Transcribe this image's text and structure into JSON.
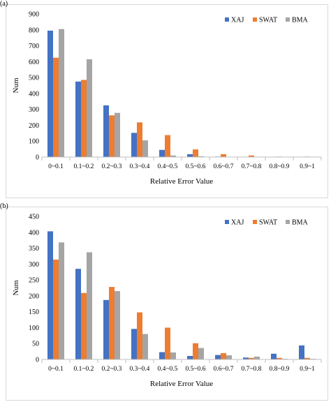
{
  "colors": {
    "XAJ": "#4472C4",
    "SWAT": "#ED7D31",
    "BMA": "#A5A5A5"
  },
  "chart_data": [
    {
      "panel_label": "(a)",
      "type": "bar",
      "categories": [
        "0~0.1",
        "0.1~0.2",
        "0.2~0.3",
        "0.3~0.4",
        "0.4~0.5",
        "0.5~0.6",
        "0.6~0.7",
        "0.7~0.8",
        "0.8~0.9",
        "0.9~1"
      ],
      "series": [
        {
          "name": "XAJ",
          "values": [
            795,
            475,
            325,
            152,
            45,
            18,
            3,
            2,
            1,
            1
          ]
        },
        {
          "name": "SWAT",
          "values": [
            625,
            485,
            262,
            218,
            138,
            48,
            18,
            10,
            3,
            3
          ]
        },
        {
          "name": "BMA",
          "values": [
            805,
            615,
            278,
            105,
            10,
            5,
            2,
            1,
            1,
            1
          ]
        }
      ],
      "xlabel": "Relative Error Value",
      "ylabel": "Num",
      "ylim": [
        0,
        900
      ],
      "yticks": [
        0,
        100,
        200,
        300,
        400,
        500,
        600,
        700,
        800,
        900
      ],
      "legend": "top-right"
    },
    {
      "panel_label": "(b)",
      "type": "bar",
      "categories": [
        "0~0.1",
        "0.1~0.2",
        "0.2~0.3",
        "0.3~0.4",
        "0.4~0.5",
        "0.5~0.6",
        "0.6~0.7",
        "0.7~0.8",
        "0.8~0.9",
        "0.9~1"
      ],
      "series": [
        {
          "name": "XAJ",
          "values": [
            403,
            285,
            187,
            96,
            23,
            11,
            14,
            6,
            18,
            44
          ]
        },
        {
          "name": "SWAT",
          "values": [
            314,
            209,
            228,
            148,
            100,
            51,
            20,
            5,
            5,
            5
          ]
        },
        {
          "name": "BMA",
          "values": [
            368,
            337,
            215,
            80,
            22,
            36,
            13,
            9,
            2,
            2
          ]
        }
      ],
      "xlabel": "Relative Error Value",
      "ylabel": "Num",
      "ylim": [
        0,
        450
      ],
      "yticks": [
        0,
        50,
        100,
        150,
        200,
        250,
        300,
        350,
        400,
        450
      ],
      "legend": "top-right"
    }
  ]
}
